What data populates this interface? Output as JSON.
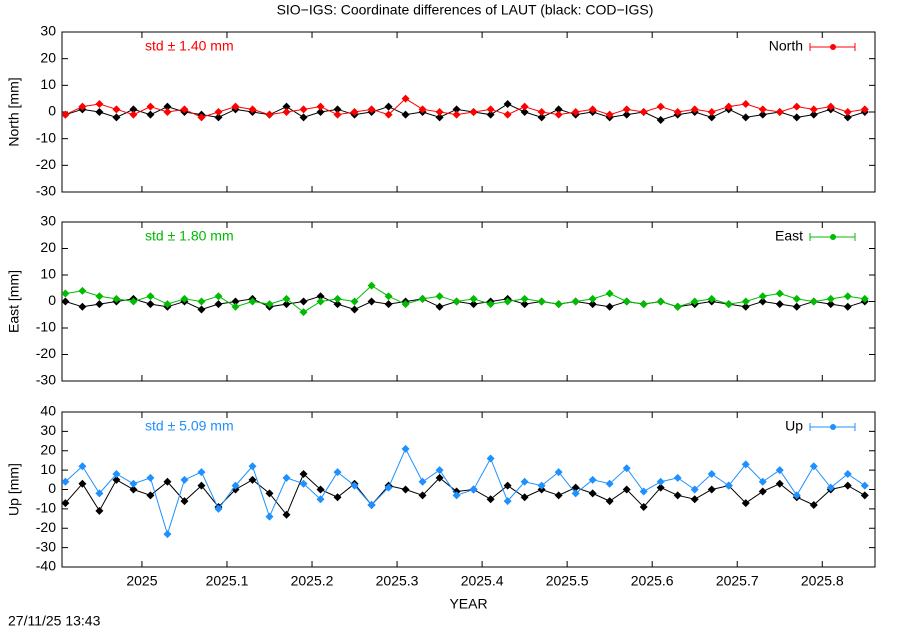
{
  "title": "SIO−IGS: Coordinate differences of LAUT (black: COD−IGS)",
  "timestamp": "27/11/25 13:43",
  "chart_data": [
    {
      "type": "line",
      "ylabel": "North [mm]",
      "annotation": "std ± 1.40 mm",
      "xlim": [
        2024.906,
        2025.862
      ],
      "xticks": [
        2025,
        2025.1,
        2025.2,
        2025.3,
        2025.4,
        2025.5,
        2025.6,
        2025.7,
        2025.8
      ],
      "ylim": [
        -30,
        30
      ],
      "yticks": [
        -30,
        -20,
        -10,
        0,
        10,
        20,
        30
      ],
      "legend": "upper right",
      "x": [
        2024.91,
        2024.93,
        2024.95,
        2024.97,
        2024.99,
        2025.01,
        2025.03,
        2025.05,
        2025.07,
        2025.09,
        2025.11,
        2025.13,
        2025.15,
        2025.17,
        2025.19,
        2025.21,
        2025.23,
        2025.25,
        2025.27,
        2025.29,
        2025.31,
        2025.33,
        2025.35,
        2025.37,
        2025.39,
        2025.41,
        2025.43,
        2025.45,
        2025.47,
        2025.49,
        2025.51,
        2025.53,
        2025.55,
        2025.57,
        2025.59,
        2025.61,
        2025.63,
        2025.65,
        2025.67,
        2025.69,
        2025.71,
        2025.73,
        2025.75,
        2025.77,
        2025.79,
        2025.81,
        2025.83,
        2025.85
      ],
      "series": [
        {
          "color": "#000000",
          "values": [
            -1,
            1,
            0,
            -2,
            1,
            -1,
            2,
            0,
            -1,
            -2,
            1,
            0,
            -1,
            2,
            -2,
            0,
            1,
            -1,
            0,
            2,
            -1,
            0,
            -2,
            1,
            0,
            -1,
            3,
            0,
            -2,
            1,
            -1,
            0,
            -2,
            -1,
            0,
            -3,
            -1,
            0,
            -2,
            1,
            -2,
            -1,
            0,
            -2,
            -1,
            1,
            -2,
            0
          ]
        },
        {
          "name": "North",
          "color": "#ff0000",
          "values": [
            -1,
            2,
            3,
            1,
            -1,
            2,
            0,
            1,
            -2,
            0,
            2,
            1,
            -1,
            0,
            1,
            2,
            -1,
            0,
            1,
            -1,
            5,
            1,
            0,
            -1,
            0,
            1,
            -1,
            2,
            0,
            -1,
            0,
            1,
            -1,
            1,
            0,
            2,
            0,
            1,
            0,
            2,
            3,
            1,
            0,
            2,
            1,
            2,
            0,
            1
          ]
        }
      ]
    },
    {
      "type": "line",
      "ylabel": "East [mm]",
      "annotation": "std ± 1.80 mm",
      "xlim": [
        2024.906,
        2025.862
      ],
      "xticks": [
        2025,
        2025.1,
        2025.2,
        2025.3,
        2025.4,
        2025.5,
        2025.6,
        2025.7,
        2025.8
      ],
      "ylim": [
        -30,
        30
      ],
      "yticks": [
        -30,
        -20,
        -10,
        0,
        10,
        20,
        30
      ],
      "legend": "upper right",
      "x": [
        2024.91,
        2024.93,
        2024.95,
        2024.97,
        2024.99,
        2025.01,
        2025.03,
        2025.05,
        2025.07,
        2025.09,
        2025.11,
        2025.13,
        2025.15,
        2025.17,
        2025.19,
        2025.21,
        2025.23,
        2025.25,
        2025.27,
        2025.29,
        2025.31,
        2025.33,
        2025.35,
        2025.37,
        2025.39,
        2025.41,
        2025.43,
        2025.45,
        2025.47,
        2025.49,
        2025.51,
        2025.53,
        2025.55,
        2025.57,
        2025.59,
        2025.61,
        2025.63,
        2025.65,
        2025.67,
        2025.69,
        2025.71,
        2025.73,
        2025.75,
        2025.77,
        2025.79,
        2025.81,
        2025.83,
        2025.85
      ],
      "series": [
        {
          "color": "#000000",
          "values": [
            0,
            -2,
            -1,
            0,
            1,
            -1,
            -2,
            0,
            -3,
            -1,
            0,
            1,
            -2,
            -1,
            0,
            2,
            -1,
            -3,
            0,
            -1,
            0,
            1,
            -2,
            0,
            -1,
            0,
            1,
            -1,
            0,
            -1,
            0,
            -1,
            -2,
            0,
            -1,
            0,
            -2,
            -1,
            0,
            -1,
            -2,
            0,
            -1,
            -2,
            0,
            -1,
            -2,
            0
          ]
        },
        {
          "name": "East",
          "color": "#00bb00",
          "values": [
            3,
            4,
            2,
            1,
            0,
            2,
            -1,
            1,
            0,
            2,
            -2,
            0,
            -1,
            1,
            -4,
            0,
            1,
            0,
            6,
            2,
            -1,
            1,
            2,
            0,
            1,
            -1,
            0,
            1,
            0,
            -1,
            0,
            1,
            3,
            0,
            -1,
            0,
            -2,
            0,
            1,
            -1,
            0,
            2,
            3,
            1,
            0,
            1,
            2,
            1
          ]
        }
      ]
    },
    {
      "type": "line",
      "ylabel": "Up [mm]",
      "xlabel": "YEAR",
      "annotation": "std ± 5.09 mm",
      "xlim": [
        2024.906,
        2025.862
      ],
      "xticks": [
        2025,
        2025.1,
        2025.2,
        2025.3,
        2025.4,
        2025.5,
        2025.6,
        2025.7,
        2025.8
      ],
      "ylim": [
        -40,
        40
      ],
      "yticks": [
        -40,
        -30,
        -20,
        -10,
        0,
        10,
        20,
        30,
        40
      ],
      "legend": "upper right",
      "x": [
        2024.91,
        2024.93,
        2024.95,
        2024.97,
        2024.99,
        2025.01,
        2025.03,
        2025.05,
        2025.07,
        2025.09,
        2025.11,
        2025.13,
        2025.15,
        2025.17,
        2025.19,
        2025.21,
        2025.23,
        2025.25,
        2025.27,
        2025.29,
        2025.31,
        2025.33,
        2025.35,
        2025.37,
        2025.39,
        2025.41,
        2025.43,
        2025.45,
        2025.47,
        2025.49,
        2025.51,
        2025.53,
        2025.55,
        2025.57,
        2025.59,
        2025.61,
        2025.63,
        2025.65,
        2025.67,
        2025.69,
        2025.71,
        2025.73,
        2025.75,
        2025.77,
        2025.79,
        2025.81,
        2025.83,
        2025.85
      ],
      "series": [
        {
          "color": "#000000",
          "values": [
            -7,
            3,
            -11,
            5,
            0,
            -3,
            4,
            -6,
            2,
            -9,
            0,
            5,
            -2,
            -13,
            8,
            0,
            -4,
            3,
            -8,
            2,
            0,
            -3,
            6,
            -1,
            0,
            -5,
            2,
            -4,
            0,
            -3,
            1,
            -2,
            -6,
            0,
            -9,
            1,
            -3,
            -5,
            0,
            2,
            -7,
            -1,
            3,
            -4,
            -8,
            0,
            2,
            -3
          ]
        },
        {
          "name": "Up",
          "color": "#1e90ff",
          "values": [
            4,
            12,
            -2,
            8,
            3,
            6,
            -23,
            5,
            9,
            -10,
            2,
            12,
            -14,
            6,
            3,
            -5,
            9,
            2,
            -8,
            1,
            21,
            4,
            10,
            -3,
            0,
            16,
            -6,
            4,
            2,
            9,
            -2,
            5,
            3,
            11,
            -1,
            4,
            6,
            0,
            8,
            2,
            13,
            4,
            10,
            -3,
            12,
            1,
            8,
            2
          ]
        }
      ]
    }
  ]
}
